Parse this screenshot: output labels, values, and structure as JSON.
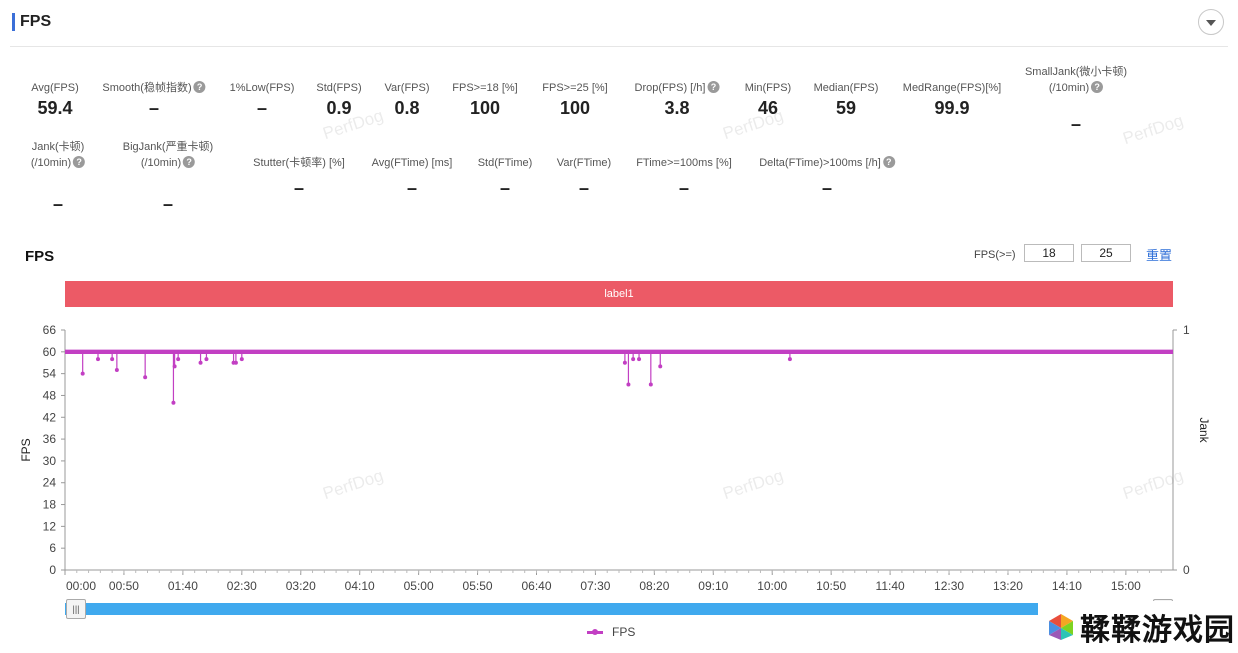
{
  "header": {
    "title": "FPS"
  },
  "metrics_row1": [
    {
      "label": "Avg(FPS)",
      "value": "59.4",
      "help": false
    },
    {
      "label": "Smooth(稳帧指数)",
      "value": "–",
      "help": true
    },
    {
      "label": "1%Low(FPS)",
      "value": "–",
      "help": false
    },
    {
      "label": "Std(FPS)",
      "value": "0.9",
      "help": false
    },
    {
      "label": "Var(FPS)",
      "value": "0.8",
      "help": false
    },
    {
      "label": "FPS>=18 [%]",
      "value": "100",
      "help": false
    },
    {
      "label": "FPS>=25 [%]",
      "value": "100",
      "help": false
    },
    {
      "label": "Drop(FPS) [/h]",
      "value": "3.8",
      "help": true
    },
    {
      "label": "Min(FPS)",
      "value": "46",
      "help": false
    },
    {
      "label": "Median(FPS)",
      "value": "59",
      "help": false
    },
    {
      "label": "MedRange(FPS)[%]",
      "value": "99.9",
      "help": false
    },
    {
      "label": "SmallJank(微小卡顿)",
      "label2": "(/10min)",
      "value": "–",
      "help": true
    }
  ],
  "metrics_row2": [
    {
      "label": "Jank(卡顿)",
      "label2": "(/10min)",
      "value": "–",
      "help": true
    },
    {
      "label": "BigJank(严重卡顿)",
      "label2": "(/10min)",
      "value": "–",
      "help": true
    },
    {
      "label": "Stutter(卡顿率) [%]",
      "value": "–",
      "help": false
    },
    {
      "label": "Avg(FTime) [ms]",
      "value": "–",
      "help": false
    },
    {
      "label": "Std(FTime)",
      "value": "–",
      "help": false
    },
    {
      "label": "Var(FTime)",
      "value": "–",
      "help": false
    },
    {
      "label": "FTime>=100ms [%]",
      "value": "–",
      "help": false
    },
    {
      "label": "Delta(FTime)>100ms [/h]",
      "value": "–",
      "help": true
    }
  ],
  "chart_section": {
    "title": "FPS",
    "threshold_label": "FPS(>=)",
    "threshold1": "18",
    "threshold2": "25",
    "reset_label": "重置",
    "label_bar": "label1",
    "legend": "FPS",
    "watermark": "PerfDog"
  },
  "chart_data": {
    "type": "line",
    "ylabel": "FPS",
    "y2label": "Jank",
    "ylim": [
      0,
      66
    ],
    "yticks": [
      "66",
      "60",
      "54",
      "48",
      "42",
      "36",
      "30",
      "24",
      "18",
      "12",
      "6",
      "0"
    ],
    "y2ticks": [
      "1",
      "0"
    ],
    "x_ticks": [
      "00:00",
      "00:50",
      "01:40",
      "02:30",
      "03:20",
      "04:10",
      "05:00",
      "05:50",
      "06:40",
      "07:30",
      "08:20",
      "09:10",
      "10:00",
      "10:50",
      "11:40",
      "12:30",
      "13:20",
      "14:10",
      "15:00"
    ],
    "x_range_seconds": [
      0,
      940
    ],
    "series": [
      {
        "name": "FPS",
        "color": "#c23fc3",
        "baseline": 60,
        "points": [
          [
            15,
            54
          ],
          [
            28,
            58
          ],
          [
            40,
            58
          ],
          [
            44,
            55
          ],
          [
            68,
            53
          ],
          [
            92,
            46
          ],
          [
            93,
            56
          ],
          [
            96,
            58
          ],
          [
            115,
            57
          ],
          [
            120,
            58
          ],
          [
            143,
            57
          ],
          [
            145,
            57
          ],
          [
            150,
            58
          ],
          [
            475,
            57
          ],
          [
            478,
            51
          ],
          [
            482,
            58
          ],
          [
            487,
            58
          ],
          [
            497,
            51
          ],
          [
            505,
            56
          ],
          [
            615,
            58
          ]
        ]
      }
    ]
  },
  "brand": {
    "text": "鞣鞣游戏园"
  }
}
